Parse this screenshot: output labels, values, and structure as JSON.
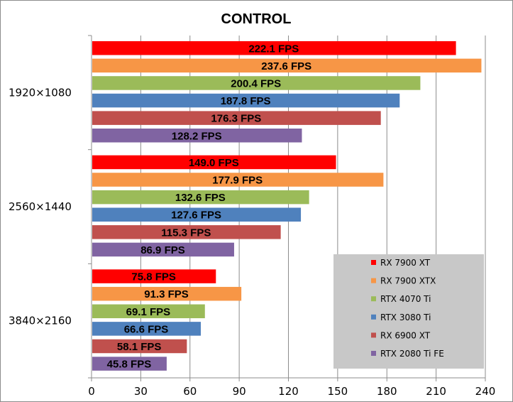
{
  "chart_data": {
    "type": "bar",
    "orientation": "horizontal",
    "title": "CONTROL",
    "xlabel": "",
    "ylabel": "",
    "xlim": [
      0,
      240
    ],
    "x_ticks": [
      "0",
      "30",
      "60",
      "90",
      "120",
      "150",
      "180",
      "210",
      "240"
    ],
    "grid": true,
    "legend_position": "bottom-right",
    "categories": [
      "1920×1080",
      "2560×1440",
      "3840×2160"
    ],
    "series": [
      {
        "name": "RX 7900 XT",
        "color": "#ff0000",
        "values": [
          222.1,
          149.0,
          75.8
        ],
        "labels": [
          "222.1 FPS",
          "149.0 FPS",
          "75.8 FPS"
        ]
      },
      {
        "name": "RX 7900 XTX",
        "color": "#f79646",
        "values": [
          237.6,
          177.9,
          91.3
        ],
        "labels": [
          "237.6 FPS",
          "177.9 FPS",
          "91.3 FPS"
        ]
      },
      {
        "name": "RTX 4070 Ti",
        "color": "#9bbb59",
        "values": [
          200.4,
          132.6,
          69.1
        ],
        "labels": [
          "200.4 FPS",
          "132.6 FPS",
          "69.1 FPS"
        ]
      },
      {
        "name": "RTX 3080 Ti",
        "color": "#4f81bd",
        "values": [
          187.8,
          127.6,
          66.6
        ],
        "labels": [
          "187.8 FPS",
          "127.6 FPS",
          "66.6 FPS"
        ]
      },
      {
        "name": "RX 6900 XT",
        "color": "#c0504d",
        "values": [
          176.3,
          115.3,
          58.1
        ],
        "labels": [
          "176.3 FPS",
          "115.3 FPS",
          "58.1 FPS"
        ]
      },
      {
        "name": "RTX 2080 Ti FE",
        "color": "#8064a2",
        "values": [
          128.2,
          86.9,
          45.8
        ],
        "labels": [
          "128.2 FPS",
          "86.9 FPS",
          "45.8 FPS"
        ]
      }
    ]
  }
}
